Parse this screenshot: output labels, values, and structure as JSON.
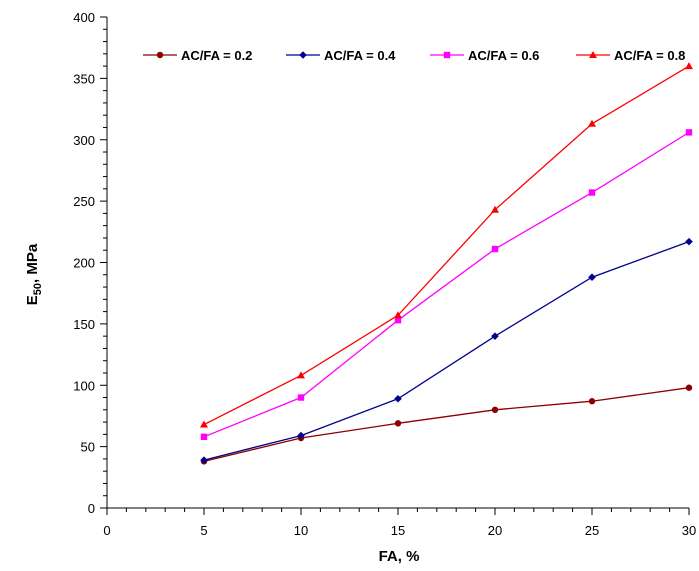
{
  "chart_data": {
    "type": "line",
    "xlabel": "FA, %",
    "ylabel_main": "E",
    "ylabel_sub": "50",
    "ylabel_unit": ", MPa",
    "xlim": [
      0,
      30
    ],
    "ylim": [
      0,
      400
    ],
    "xticks": [
      0,
      5,
      10,
      15,
      20,
      25,
      30
    ],
    "yticks": [
      0,
      50,
      100,
      150,
      200,
      250,
      300,
      350,
      400
    ],
    "x_minor_step": 1,
    "y_minor_step": 10,
    "grid": false,
    "legend_position": "top",
    "x": [
      5,
      10,
      15,
      20,
      25,
      30
    ],
    "series": [
      {
        "name": "AC/FA = 0.2",
        "color": "#8B0000",
        "marker": "circle",
        "x": [
          5,
          10,
          15,
          20,
          25,
          30
        ],
        "values": [
          38,
          57,
          69,
          80,
          87,
          98
        ]
      },
      {
        "name": "AC/FA = 0.4",
        "color": "#00008B",
        "marker": "diamond",
        "x": [
          5,
          10,
          15,
          20,
          25,
          30
        ],
        "values": [
          39,
          59,
          89,
          140,
          188,
          217
        ]
      },
      {
        "name": "AC/FA = 0.6",
        "color": "#FF00FF",
        "marker": "square",
        "x": [
          5,
          10,
          15,
          20,
          25,
          30
        ],
        "values": [
          58,
          90,
          153,
          211,
          257,
          306
        ]
      },
      {
        "name": "AC/FA = 0.8",
        "color": "#FF0000",
        "marker": "triangle",
        "x": [
          5,
          10,
          15,
          20,
          25,
          30
        ],
        "values": [
          68,
          108,
          157,
          243,
          313,
          360
        ]
      }
    ]
  }
}
